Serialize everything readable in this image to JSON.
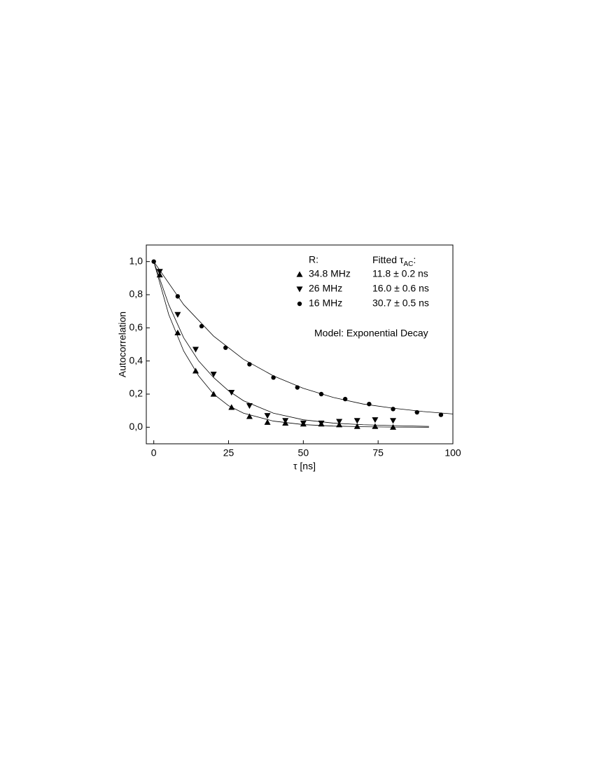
{
  "chart_data": {
    "type": "scatter",
    "xlabel": "τ [ns]",
    "ylabel": "Autocorrelation",
    "xlim": [
      -2.5,
      100
    ],
    "ylim": [
      -0.1,
      1.1
    ],
    "xticks": [
      0,
      25,
      50,
      75,
      100
    ],
    "yticks": [
      {
        "value": 0,
        "label": "0,0"
      },
      {
        "value": 0.2,
        "label": "0,2"
      },
      {
        "value": 0.4,
        "label": "0,4"
      },
      {
        "value": 0.6,
        "label": "0,6"
      },
      {
        "value": 0.8,
        "label": "0,8"
      },
      {
        "value": 1.0,
        "label": "1,0"
      }
    ],
    "legend_header": {
      "rate": "R:",
      "fit": "Fitted τ",
      "fit_sub": "AC",
      "fit_end": ":"
    },
    "annotation": "Model: Exponential Decay",
    "color": "#000000",
    "series": [
      {
        "name": "34.8 MHz",
        "marker": "triangle-up",
        "fit_text": "11.8  ± 0.2 ns",
        "x": [
          2,
          8,
          14,
          20,
          26,
          32,
          38,
          44,
          50,
          56,
          62,
          68,
          74,
          80
        ],
        "values": [
          0.92,
          0.57,
          0.34,
          0.2,
          0.12,
          0.065,
          0.03,
          0.025,
          0.02,
          0.02,
          0.015,
          0.005,
          0.005,
          0.0
        ],
        "fit_x": [
          0,
          5,
          10,
          15,
          20,
          25,
          30,
          40,
          50,
          60,
          70,
          80,
          92
        ],
        "fit_values": [
          1.0,
          0.68,
          0.46,
          0.31,
          0.2,
          0.13,
          0.085,
          0.037,
          0.016,
          0.007,
          0.003,
          0.001,
          0.0
        ]
      },
      {
        "name": "26 MHz",
        "marker": "triangle-down",
        "fit_text": "16.0  ± 0.6 ns",
        "x": [
          2,
          8,
          14,
          20,
          26,
          32,
          38,
          44,
          50,
          56,
          62,
          68,
          74,
          80
        ],
        "values": [
          0.94,
          0.68,
          0.47,
          0.32,
          0.21,
          0.13,
          0.07,
          0.04,
          0.025,
          0.025,
          0.035,
          0.04,
          0.045,
          0.04
        ],
        "fit_x": [
          0,
          5,
          10,
          15,
          20,
          25,
          30,
          40,
          50,
          60,
          70,
          80,
          92
        ],
        "fit_values": [
          1.0,
          0.74,
          0.54,
          0.4,
          0.3,
          0.22,
          0.16,
          0.085,
          0.045,
          0.025,
          0.015,
          0.01,
          0.005
        ]
      },
      {
        "name": "16 MHz",
        "marker": "circle",
        "fit_text": "30.7  ± 0.5 ns",
        "x": [
          0,
          8,
          16,
          24,
          32,
          40,
          48,
          56,
          64,
          72,
          80,
          88,
          96
        ],
        "values": [
          1.0,
          0.79,
          0.61,
          0.48,
          0.38,
          0.3,
          0.24,
          0.2,
          0.17,
          0.14,
          0.11,
          0.09,
          0.075
        ],
        "fit_x": [
          0,
          10,
          20,
          30,
          40,
          50,
          60,
          70,
          80,
          90,
          100
        ],
        "fit_values": [
          1.0,
          0.74,
          0.55,
          0.41,
          0.31,
          0.235,
          0.18,
          0.14,
          0.115,
          0.095,
          0.08
        ]
      }
    ]
  }
}
